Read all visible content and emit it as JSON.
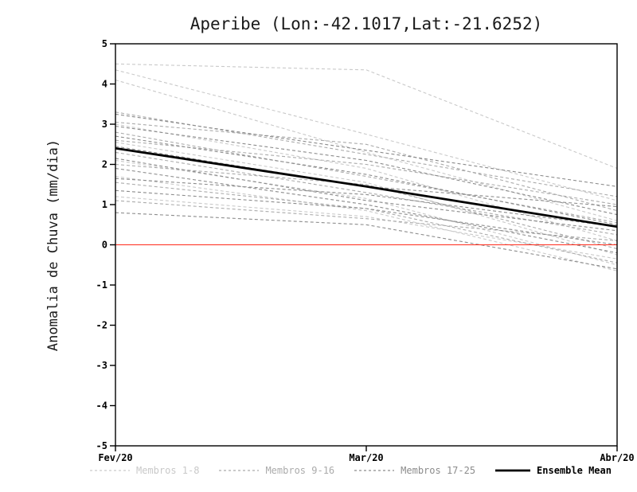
{
  "title": "Aperibe (Lon:-42.1017,Lat:-21.6252)",
  "ylabel": "Anomalia de Chuva (mm/dia)",
  "legend": [
    {
      "label": "Membros 1-8",
      "color": "#c9c9c9",
      "dashed": true,
      "width": 1.2
    },
    {
      "label": "Membros 9-16",
      "color": "#ababab",
      "dashed": true,
      "width": 1.2
    },
    {
      "label": "Membros 17-25",
      "color": "#8c8c8c",
      "dashed": true,
      "width": 1.2
    },
    {
      "label": "Ensemble Mean",
      "color": "#000000",
      "dashed": false,
      "width": 2.8
    }
  ],
  "chart_data": {
    "type": "line",
    "title": "Aperibe (Lon:-42.1017,Lat:-21.6252)",
    "xlabel": "",
    "ylabel": "Anomalia de Chuva (mm/dia)",
    "x_categories": [
      "Fev/20",
      "Mar/20",
      "Abr/20"
    ],
    "ylim": [
      -5,
      5
    ],
    "ytick_step": 1,
    "grid": false,
    "zero_line": {
      "value": 0,
      "color": "#ff2a1a"
    },
    "groups": [
      {
        "name": "Membros 1-8",
        "color": "#c9c9c9",
        "members": [
          [
            4.5,
            4.35,
            1.9
          ],
          [
            4.35,
            2.75,
            1.1
          ],
          [
            4.1,
            2.3,
            0.6
          ],
          [
            3.0,
            1.9,
            0.1
          ],
          [
            2.55,
            1.55,
            -0.25
          ],
          [
            2.1,
            1.15,
            -0.5
          ],
          [
            1.7,
            0.85,
            -0.65
          ],
          [
            1.2,
            0.7,
            -0.35
          ]
        ]
      },
      {
        "name": "Membros 9-16",
        "color": "#ababab",
        "members": [
          [
            3.3,
            2.25,
            1.2
          ],
          [
            3.05,
            2.5,
            0.85
          ],
          [
            2.8,
            1.7,
            0.55
          ],
          [
            2.6,
            2.0,
            1.0
          ],
          [
            2.3,
            1.3,
            0.25
          ],
          [
            2.0,
            1.5,
            -0.1
          ],
          [
            1.55,
            0.9,
            -0.45
          ],
          [
            1.1,
            0.65,
            0.1
          ]
        ]
      },
      {
        "name": "Membros 17-25",
        "color": "#8c8c8c",
        "members": [
          [
            3.25,
            2.35,
            1.45
          ],
          [
            2.95,
            2.1,
            0.75
          ],
          [
            2.7,
            1.75,
            0.5
          ],
          [
            2.45,
            1.45,
            0.95
          ],
          [
            2.15,
            1.1,
            0.35
          ],
          [
            1.9,
            1.0,
            -0.2
          ],
          [
            1.65,
            1.25,
            0.45
          ],
          [
            1.35,
            0.9,
            0.0
          ],
          [
            0.8,
            0.5,
            -0.6
          ]
        ]
      }
    ],
    "ensemble_mean": {
      "name": "Ensemble Mean",
      "color": "#000000",
      "values": [
        2.4,
        1.45,
        0.45
      ]
    },
    "legend_position": "bottom"
  }
}
